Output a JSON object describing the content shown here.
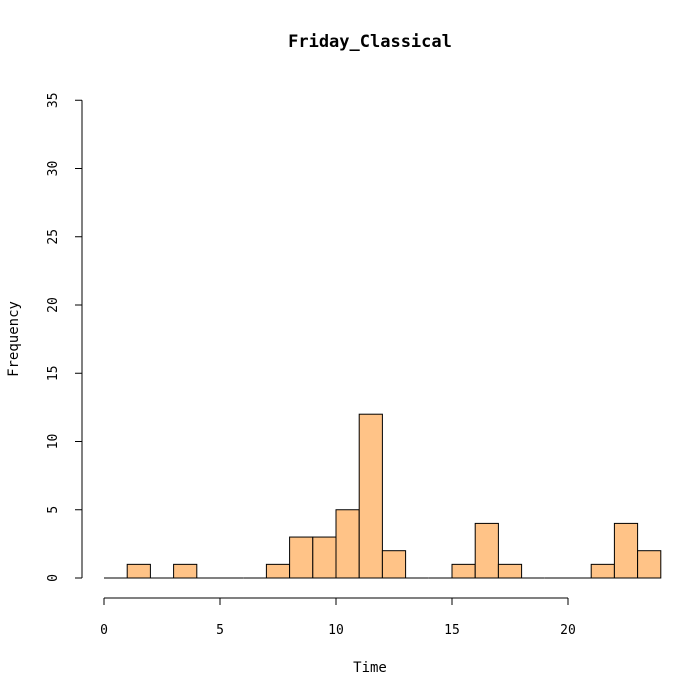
{
  "chart_data": {
    "type": "bar",
    "title": "Friday_Classical",
    "xlabel": "Time",
    "ylabel": "Frequency",
    "xlim": [
      0,
      24
    ],
    "ylim": [
      0,
      35
    ],
    "x_ticks": [
      0,
      5,
      10,
      15,
      20
    ],
    "y_ticks": [
      0,
      5,
      10,
      15,
      20,
      25,
      30,
      35
    ],
    "bin_width": 1,
    "bin_starts": [
      0,
      1,
      2,
      3,
      4,
      5,
      6,
      7,
      8,
      9,
      10,
      11,
      12,
      13,
      14,
      15,
      16,
      17,
      18,
      19,
      20,
      21,
      22,
      23
    ],
    "values": [
      0,
      1,
      0,
      1,
      0,
      0,
      0,
      1,
      3,
      3,
      5,
      12,
      2,
      0,
      0,
      1,
      4,
      1,
      0,
      0,
      0,
      1,
      4,
      2
    ],
    "bar_color": "#FFC387",
    "grid": false
  }
}
